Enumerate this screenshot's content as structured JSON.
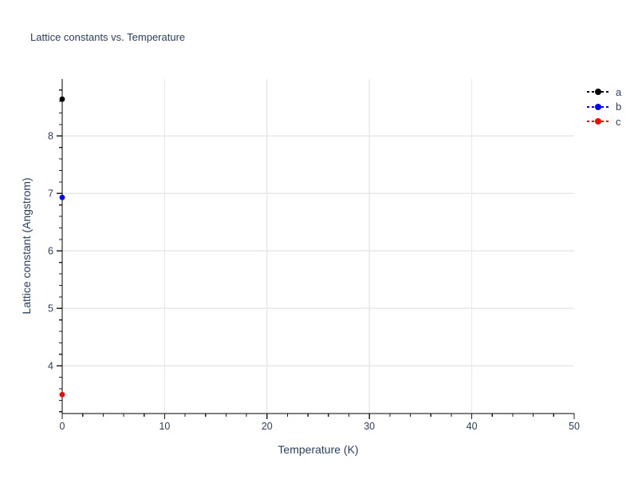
{
  "chart_data": {
    "type": "scatter",
    "title": "Lattice constants vs. Temperature",
    "xlabel": "Temperature (K)",
    "ylabel": "Lattice constant (Angstrom)",
    "xlim": [
      0,
      50
    ],
    "ylim": [
      3.17,
      8.99
    ],
    "x_major_ticks": [
      0,
      10,
      20,
      30,
      40,
      50
    ],
    "x_minor_step": 2,
    "y_major_ticks": [
      4,
      5,
      6,
      7,
      8
    ],
    "y_minor_step": 0.2,
    "grid": true,
    "legend_position": "outside-top-right",
    "line_style": "dashed-with-circle-marker",
    "series": [
      {
        "name": "a",
        "color": "#000000",
        "x": [
          0
        ],
        "y": [
          8.64
        ]
      },
      {
        "name": "b",
        "color": "#0000ff",
        "x": [
          0
        ],
        "y": [
          6.93
        ]
      },
      {
        "name": "c",
        "color": "#ff0000",
        "x": [
          0
        ],
        "y": [
          3.5
        ]
      }
    ]
  },
  "colors": {
    "text": "#2a3f5f",
    "grid": "#e8e8e8",
    "axis_line": "#000000",
    "tick": "#222222",
    "background": "#ffffff"
  }
}
